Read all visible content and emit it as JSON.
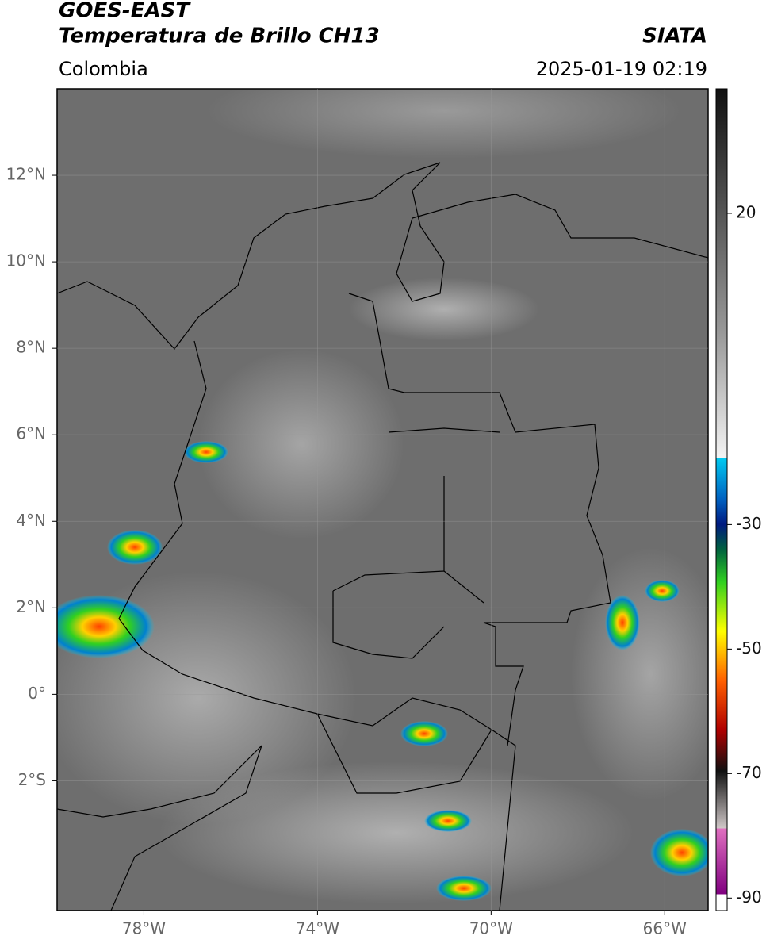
{
  "header": {
    "title": "GOES-EAST",
    "subtitle": "Temperatura de Brillo CH13",
    "region": "Colombia",
    "source": "SIATA",
    "timestamp": "2025-01-19 02:19"
  },
  "map": {
    "xlim": [
      -80,
      -65
    ],
    "ylim": [
      -5,
      14
    ],
    "xticks": [
      {
        "value": -78,
        "label": "78°W"
      },
      {
        "value": -74,
        "label": "74°W"
      },
      {
        "value": -70,
        "label": "70°W"
      },
      {
        "value": -66,
        "label": "66°W"
      }
    ],
    "yticks": [
      {
        "value": 12,
        "label": "12°N"
      },
      {
        "value": 10,
        "label": "10°N"
      },
      {
        "value": 8,
        "label": "8°N"
      },
      {
        "value": 6,
        "label": "6°N"
      },
      {
        "value": 4,
        "label": "4°N"
      },
      {
        "value": 2,
        "label": "2°N"
      },
      {
        "value": 0,
        "label": "0°"
      },
      {
        "value": -2,
        "label": "2°S"
      }
    ],
    "grid": true
  },
  "colorbar": {
    "lim": [
      -92,
      40
    ],
    "ticks": [
      20,
      -30,
      -50,
      -70,
      -90
    ]
  }
}
